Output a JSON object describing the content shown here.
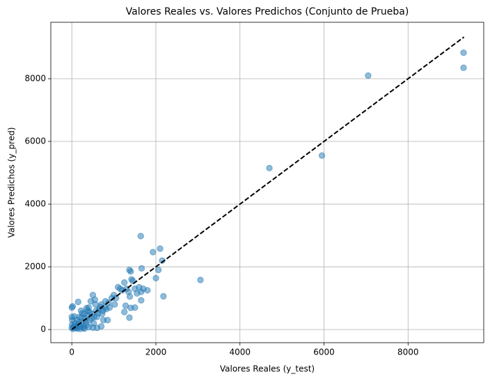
{
  "chart_data": {
    "type": "scatter",
    "title": "Valores Reales vs. Valores Predichos (Conjunto de Prueba)",
    "x_label": "Valores Reales (y_test)",
    "y_label": "Valores Predichos (y_pred)",
    "xlim": [
      -500,
      9800
    ],
    "ylim": [
      -420,
      9800
    ],
    "xticks": [
      0,
      2000,
      4000,
      6000,
      8000
    ],
    "yticks": [
      0,
      2000,
      4000,
      6000,
      8000
    ],
    "grid": true,
    "series": [
      {
        "color": "#1f77b4",
        "x": [
          0,
          20,
          0,
          10,
          5,
          0,
          30,
          50,
          80,
          100,
          120,
          150,
          150,
          180,
          200,
          220,
          250,
          270,
          300,
          320,
          350,
          380,
          400,
          420,
          450,
          480,
          500,
          520,
          550,
          580,
          600,
          650,
          700,
          720,
          750,
          780,
          800,
          820,
          850,
          870,
          900,
          950,
          1000,
          1020,
          1050,
          1100,
          1150,
          1200,
          1250,
          1300,
          1350,
          1380,
          1420,
          1450,
          1500,
          1550,
          1600,
          1650,
          1700,
          60,
          90,
          130,
          170,
          230,
          280,
          330,
          370,
          430,
          470,
          530,
          560,
          620,
          680,
          740,
          300,
          400,
          500,
          600,
          700,
          200,
          250,
          350,
          9320,
          9320,
          7050,
          5950,
          4700,
          3060,
          2180,
          1640,
          2100,
          1930,
          2150,
          2060,
          1660,
          1370,
          1400,
          2000,
          1800,
          1650,
          1370,
          1400,
          1500,
          1280,
          1250
        ],
        "values": [
          700,
          740,
          400,
          300,
          150,
          50,
          20,
          100,
          200,
          50,
          300,
          880,
          150,
          400,
          100,
          600,
          250,
          50,
          500,
          350,
          150,
          600,
          700,
          300,
          900,
          500,
          1100,
          200,
          950,
          600,
          400,
          650,
          800,
          500,
          300,
          700,
          900,
          650,
          300,
          850,
          700,
          1000,
          1100,
          800,
          1000,
          1350,
          1300,
          1250,
          1500,
          1300,
          1200,
          1050,
          1600,
          1550,
          1300,
          1150,
          1350,
          1200,
          1300,
          420,
          80,
          30,
          230,
          380,
          120,
          250,
          450,
          550,
          350,
          400,
          800,
          520,
          720,
          600,
          30,
          80,
          60,
          50,
          100,
          20,
          520,
          680,
          8830,
          8350,
          8100,
          5550,
          5150,
          1580,
          1060,
          2980,
          2580,
          2470,
          2200,
          1900,
          1950,
          1900,
          1850,
          1640,
          1250,
          930,
          380,
          690,
          700,
          760,
          560
        ]
      }
    ],
    "reference_line": {
      "color": "#000000",
      "x": [
        0,
        9330
      ],
      "values": [
        0,
        9330
      ]
    }
  }
}
